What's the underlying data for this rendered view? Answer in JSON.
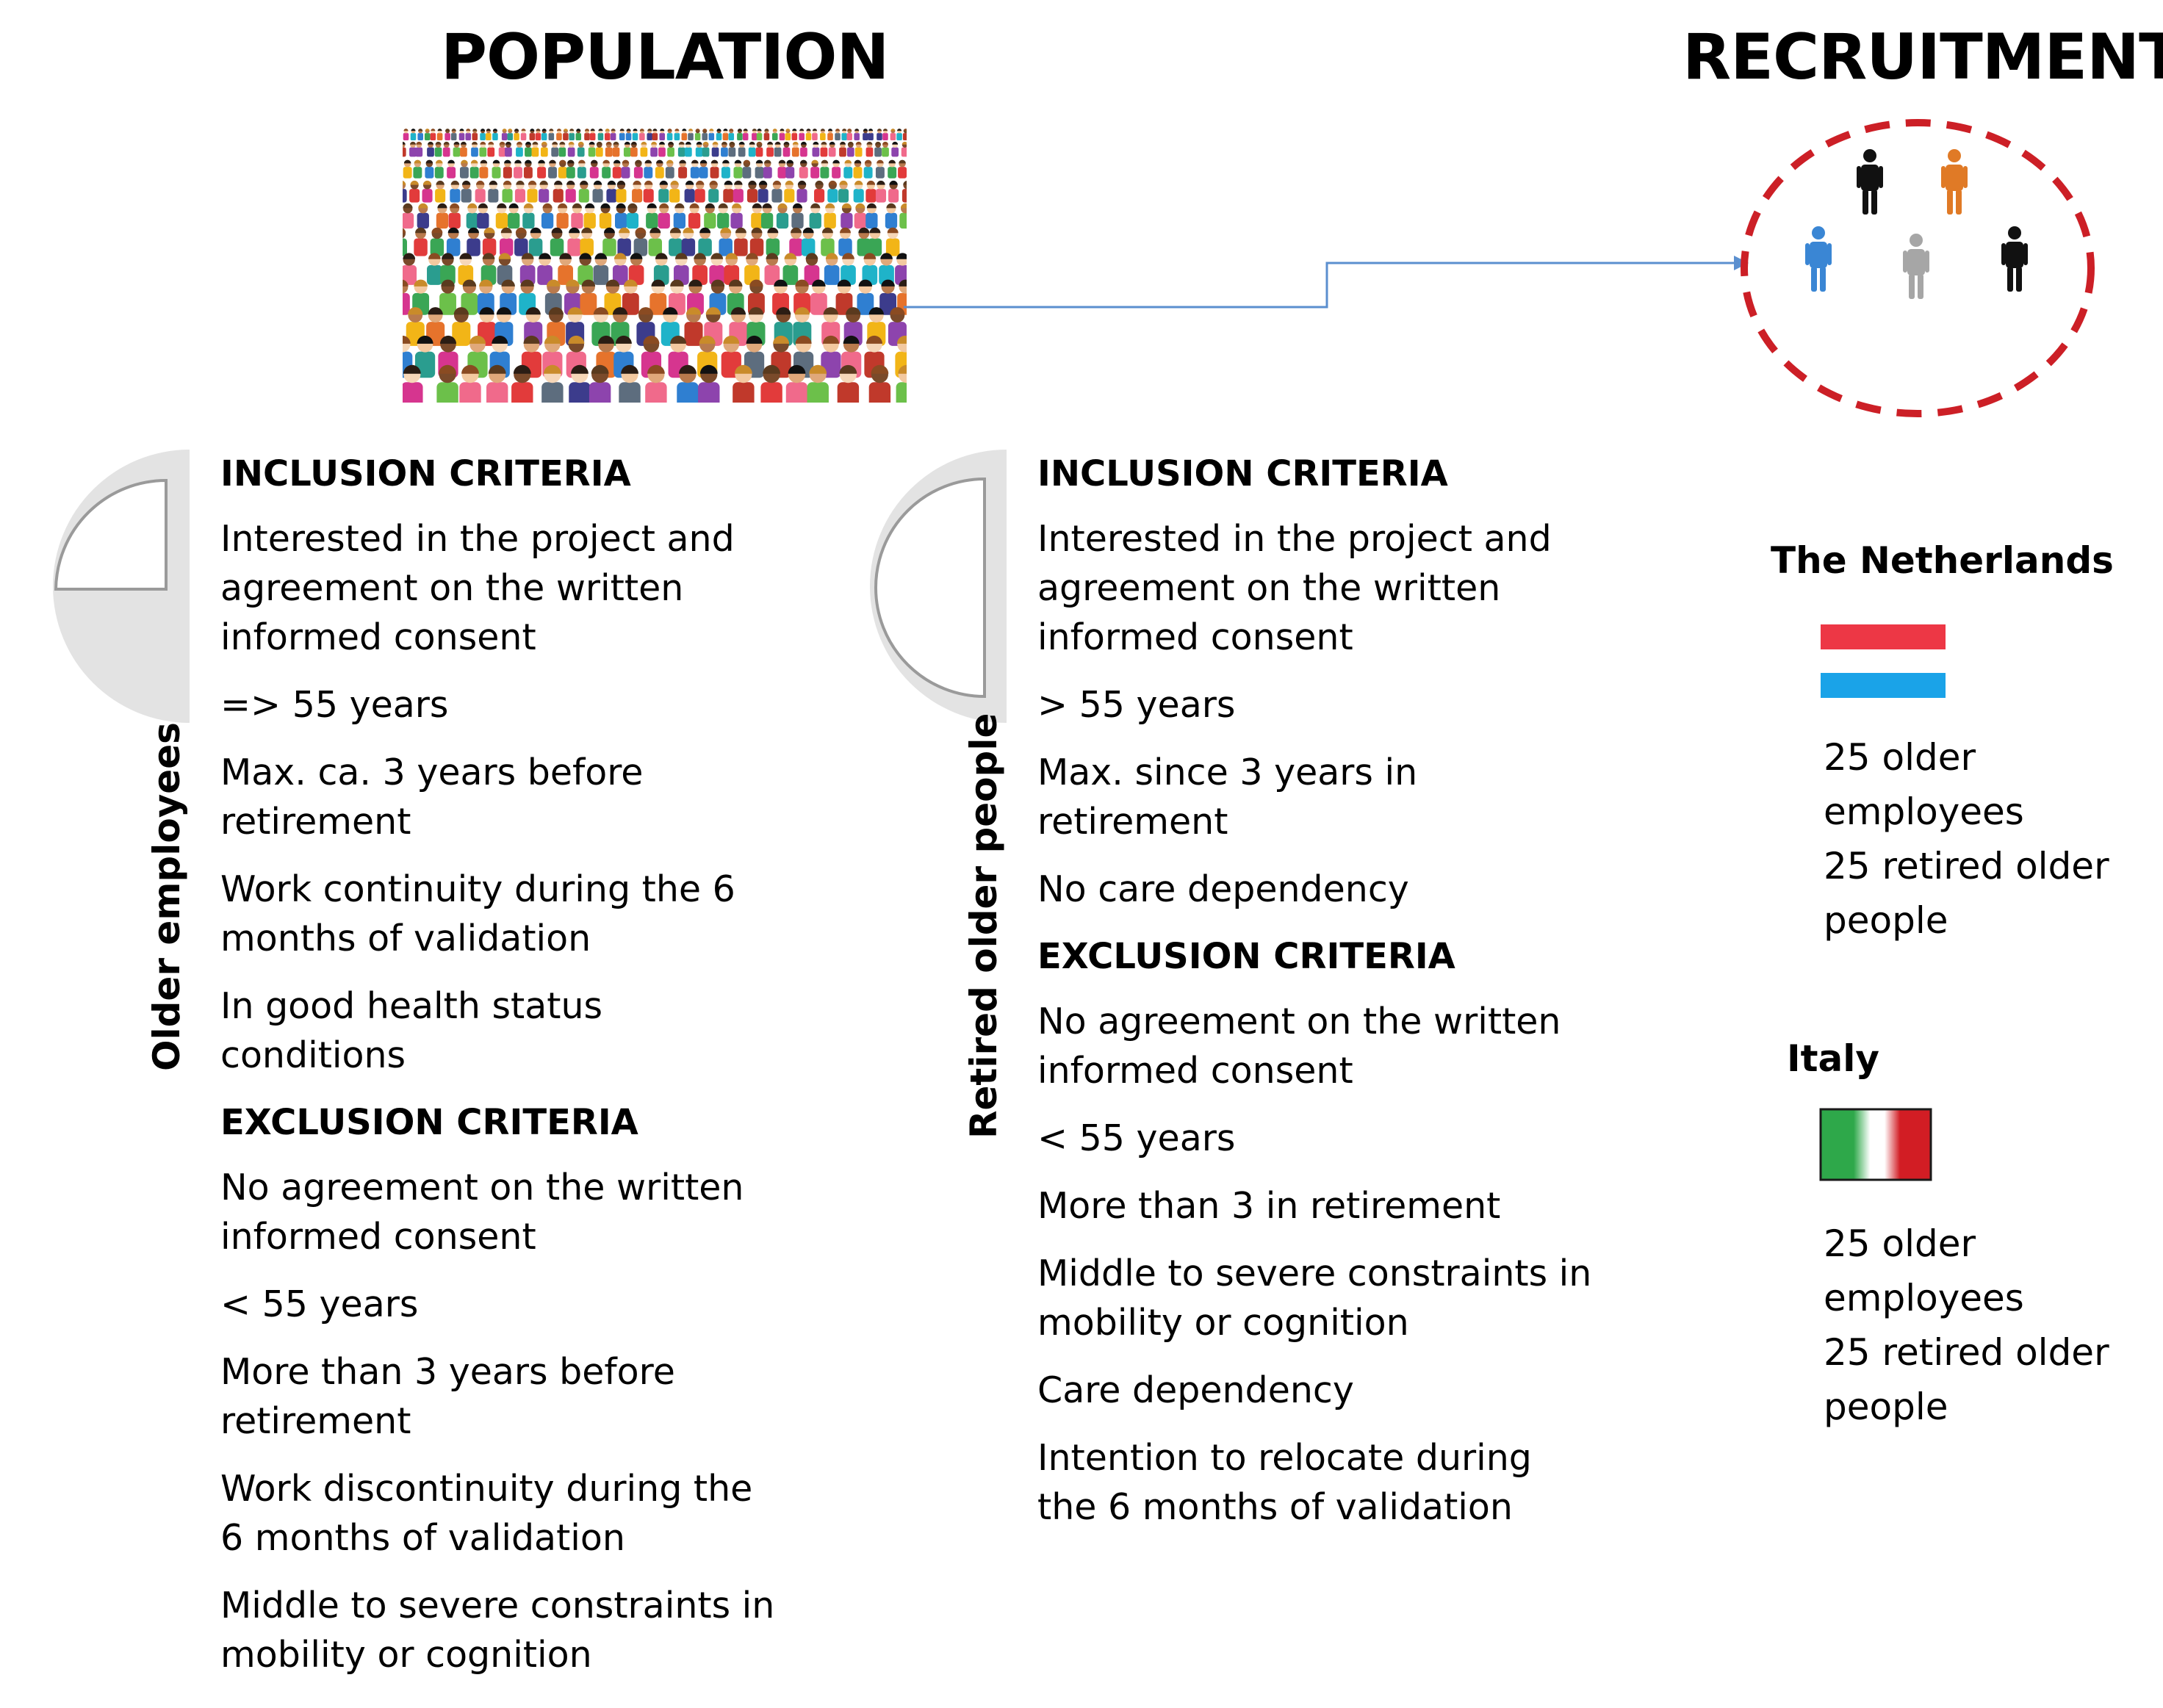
{
  "headings": {
    "population": "POPULATION",
    "recruitment": "RECRUITMENT"
  },
  "icons": {
    "crowd": "crowd-illustration",
    "recruited_group": "people-in-dashed-circle",
    "older_employees_symbol": "quarter-circle-icon",
    "retired_symbol": "half-circle-icon",
    "netherlands_flag": "netherlands-flag-icon",
    "italy_flag": "italy-flag-icon"
  },
  "colors": {
    "dashed_circle": "#cc1f26",
    "arrow": "#5b8fcf",
    "symbol_gray": "#e3e3e3",
    "nl_red": "#ed3745",
    "nl_blue": "#1aa3e8",
    "it_green": "#2ea84a",
    "it_red": "#d21d24"
  },
  "older_employees": {
    "label": "Older employees",
    "inclusion_title": "INCLUSION CRITERIA",
    "inclusion": [
      "Interested in the project and agreement on the written informed consent",
      "=> 55 years",
      "Max. ca. 3 years before retirement",
      "Work continuity during the 6 months of validation",
      "In good health status conditions"
    ],
    "exclusion_title": "EXCLUSION CRITERIA",
    "exclusion": [
      "No agreement on the written informed consent",
      "< 55 years",
      "More than 3 years before retirement",
      "Work discontinuity during the 6 months of validation",
      "Middle to severe constraints in mobility or cognition"
    ]
  },
  "retired_older_people": {
    "label": "Retired older people",
    "inclusion_title": "INCLUSION CRITERIA",
    "inclusion": [
      "Interested in the project and agreement on the written informed consent",
      "> 55 years",
      "Max. since 3 years in retirement",
      "No care dependency"
    ],
    "exclusion_title": "EXCLUSION CRITERIA",
    "exclusion": [
      "No agreement on the written informed consent",
      "< 55 years",
      "More than 3 in retirement",
      "Middle to severe constraints in mobility or cognition",
      "Care dependency",
      "Intention to relocate during the 6 months of validation"
    ]
  },
  "countries": [
    {
      "name": "The Netherlands",
      "line1": "25 older employees",
      "line2": "25 retired older people"
    },
    {
      "name": "Italy",
      "line1": "25 older employees",
      "line2": "25 retired older people"
    }
  ]
}
